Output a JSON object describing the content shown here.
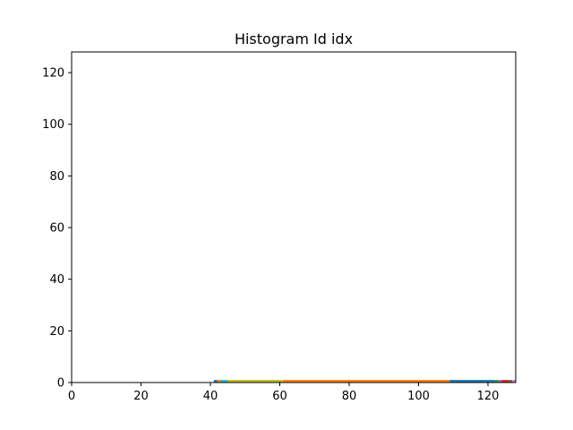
{
  "chart_data": {
    "type": "bar",
    "title": "Histogram Id idx",
    "xlabel": "",
    "ylabel": "",
    "xlim": [
      0,
      128
    ],
    "ylim": [
      0,
      128
    ],
    "xticks": [
      "0",
      "20",
      "40",
      "60",
      "80",
      "100",
      "120"
    ],
    "yticks": [
      "0",
      "20",
      "40",
      "60",
      "80",
      "100",
      "120"
    ],
    "grid": false,
    "legend": "none",
    "segments": [
      {
        "x_start": 41,
        "x_end": 42,
        "value": 1,
        "color": "#1f77b4"
      },
      {
        "x_start": 42,
        "x_end": 43,
        "value": 1,
        "color": "#ff7f0e"
      },
      {
        "x_start": 43,
        "x_end": 45,
        "value": 1,
        "color": "#17becf"
      },
      {
        "x_start": 45,
        "x_end": 61,
        "value": 1,
        "color": "#bcbd22"
      },
      {
        "x_start": 61,
        "x_end": 109,
        "value": 1,
        "color": "#ff7f0e"
      },
      {
        "x_start": 109,
        "x_end": 122,
        "value": 1,
        "color": "#1f77b4"
      },
      {
        "x_start": 122,
        "x_end": 123,
        "value": 1,
        "color": "#2ca02c"
      },
      {
        "x_start": 123,
        "x_end": 124,
        "value": 1,
        "color": "#9467bd"
      },
      {
        "x_start": 124,
        "x_end": 126,
        "value": 1,
        "color": "#d62728"
      },
      {
        "x_start": 126,
        "x_end": 127,
        "value": 1,
        "color": "#8c564b"
      },
      {
        "x_start": 127,
        "x_end": 128,
        "value": 1,
        "color": "#e377c2"
      }
    ]
  }
}
